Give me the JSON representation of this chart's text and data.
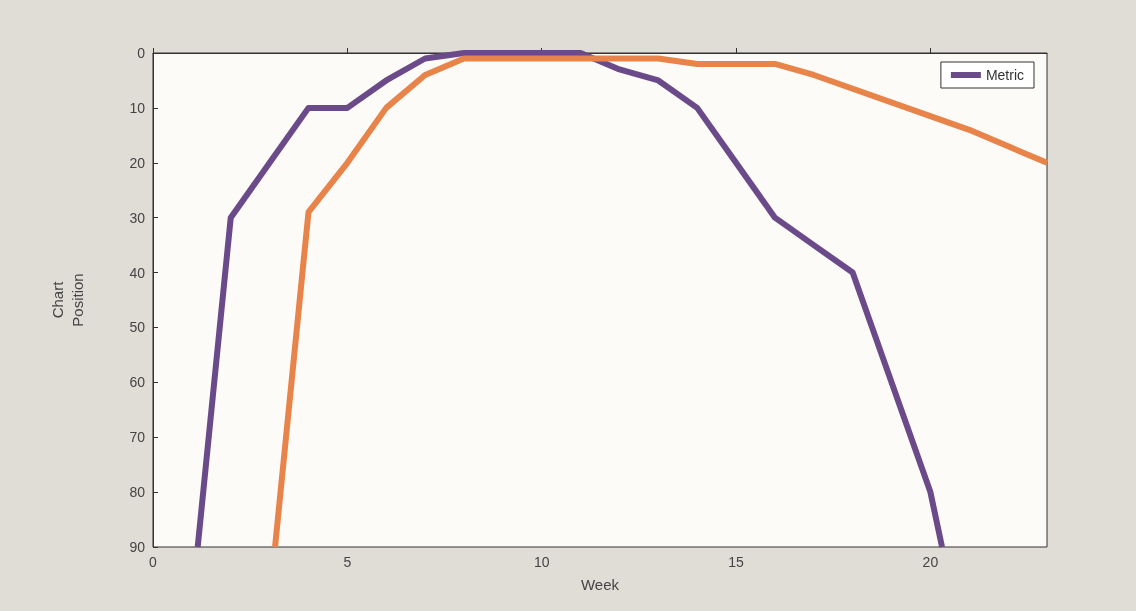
{
  "chart_data": {
    "type": "line",
    "xlabel": "Week",
    "ylabel": "Chart\nPosition",
    "xlim": [
      0,
      23
    ],
    "ylim": [
      90,
      0
    ],
    "xticks": [
      0,
      5,
      10,
      15,
      20
    ],
    "yticks": [
      0,
      10,
      20,
      30,
      40,
      50,
      60,
      70,
      80,
      90
    ],
    "grid": false,
    "legend": "top right",
    "marker": "none",
    "line_style": "solid",
    "series": [
      {
        "name": "Metric",
        "color": "#6b4a8a",
        "x": [
          1.15,
          2,
          3,
          4,
          5,
          6,
          7,
          8,
          9,
          10,
          11,
          12,
          13,
          14,
          15,
          16,
          17,
          18,
          19,
          20,
          20.3
        ],
        "values": [
          90,
          30,
          20,
          10,
          10,
          5,
          1,
          0,
          0,
          0,
          0,
          3,
          5,
          10,
          20,
          30,
          35,
          40,
          60,
          80,
          90
        ]
      },
      {
        "color": "#e8834a",
        "x": [
          3.14,
          4,
          5,
          6,
          7,
          8,
          9,
          10,
          11,
          12,
          13,
          14,
          15,
          16,
          17,
          20.6,
          21,
          22,
          23
        ],
        "values": [
          90,
          29,
          20,
          10,
          4,
          1,
          1,
          1,
          1,
          1,
          1,
          2,
          2,
          2,
          4,
          13,
          14,
          17,
          20
        ]
      }
    ]
  }
}
